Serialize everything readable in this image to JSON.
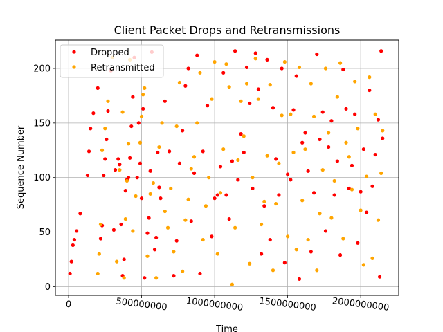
{
  "chart_data": {
    "type": "scatter",
    "title": "Client Packet Drops and Retransmissions",
    "xlabel": "Time",
    "ylabel": "Sequence Number",
    "xlim": [
      -90000000,
      2260000000
    ],
    "ylim": [
      -8,
      226
    ],
    "x_ticks": [
      0,
      500000000,
      1000000000,
      1500000000,
      2000000000
    ],
    "x_tick_labels": [
      "0",
      "500000000",
      "1000000000",
      "1500000000",
      "2000000000"
    ],
    "y_ticks": [
      0,
      50,
      100,
      150,
      200
    ],
    "y_tick_labels": [
      "0",
      "50",
      "100",
      "150",
      "200"
    ],
    "grid": true,
    "legend_position": "upper-left",
    "series": [
      {
        "name": "Dropped",
        "color": "#ff0000",
        "points": [
          [
            10000000,
            12
          ],
          [
            20000000,
            23
          ],
          [
            30000000,
            38
          ],
          [
            40000000,
            43
          ],
          [
            55000000,
            51
          ],
          [
            80000000,
            67
          ],
          [
            130000000,
            102
          ],
          [
            140000000,
            124
          ],
          [
            150000000,
            145
          ],
          [
            170000000,
            159
          ],
          [
            200000000,
            182
          ],
          [
            220000000,
            44
          ],
          [
            230000000,
            56
          ],
          [
            240000000,
            102
          ],
          [
            250000000,
            117
          ],
          [
            260000000,
            135
          ],
          [
            270000000,
            161
          ],
          [
            290000000,
            198
          ],
          [
            310000000,
            52
          ],
          [
            320000000,
            107
          ],
          [
            340000000,
            117
          ],
          [
            350000000,
            112
          ],
          [
            360000000,
            57
          ],
          [
            370000000,
            10
          ],
          [
            380000000,
            25
          ],
          [
            390000000,
            88
          ],
          [
            400000000,
            98
          ],
          [
            410000000,
            100
          ],
          [
            420000000,
            118
          ],
          [
            430000000,
            147
          ],
          [
            440000000,
            174
          ],
          [
            450000000,
            210
          ],
          [
            470000000,
            100
          ],
          [
            480000000,
            150
          ],
          [
            490000000,
            113
          ],
          [
            500000000,
            81
          ],
          [
            510000000,
            163
          ],
          [
            520000000,
            8
          ],
          [
            540000000,
            49
          ],
          [
            550000000,
            63
          ],
          [
            560000000,
            106
          ],
          [
            570000000,
            215
          ],
          [
            590000000,
            34
          ],
          [
            600000000,
            45
          ],
          [
            610000000,
            123
          ],
          [
            620000000,
            91
          ],
          [
            630000000,
            81
          ],
          [
            660000000,
            170
          ],
          [
            690000000,
            124
          ],
          [
            720000000,
            10
          ],
          [
            740000000,
            42
          ],
          [
            760000000,
            113
          ],
          [
            780000000,
            143
          ],
          [
            800000000,
            184
          ],
          [
            820000000,
            200
          ],
          [
            840000000,
            60
          ],
          [
            860000000,
            104
          ],
          [
            880000000,
            212
          ],
          [
            900000000,
            12
          ],
          [
            920000000,
            124
          ],
          [
            950000000,
            166
          ],
          [
            980000000,
            46
          ],
          [
            1000000000,
            81
          ],
          [
            1020000000,
            84
          ],
          [
            1040000000,
            110
          ],
          [
            1060000000,
            196
          ],
          [
            1080000000,
            84
          ],
          [
            1100000000,
            62
          ],
          [
            1120000000,
            115
          ],
          [
            1140000000,
            216
          ],
          [
            1160000000,
            98
          ],
          [
            1180000000,
            140
          ],
          [
            1200000000,
            123
          ],
          [
            1220000000,
            201
          ],
          [
            1240000000,
            168
          ],
          [
            1260000000,
            90
          ],
          [
            1280000000,
            214
          ],
          [
            1300000000,
            181
          ],
          [
            1320000000,
            30
          ],
          [
            1340000000,
            74
          ],
          [
            1360000000,
            208
          ],
          [
            1380000000,
            43
          ],
          [
            1400000000,
            164
          ],
          [
            1420000000,
            117
          ],
          [
            1440000000,
            84
          ],
          [
            1460000000,
            200
          ],
          [
            1480000000,
            22
          ],
          [
            1500000000,
            103
          ],
          [
            1520000000,
            98
          ],
          [
            1540000000,
            162
          ],
          [
            1560000000,
            193
          ],
          [
            1580000000,
            7
          ],
          [
            1600000000,
            132
          ],
          [
            1620000000,
            141
          ],
          [
            1640000000,
            106
          ],
          [
            1660000000,
            32
          ],
          [
            1680000000,
            86
          ],
          [
            1700000000,
            213
          ],
          [
            1720000000,
            135
          ],
          [
            1740000000,
            160
          ],
          [
            1760000000,
            51
          ],
          [
            1780000000,
            128
          ],
          [
            1800000000,
            152
          ],
          [
            1820000000,
            84
          ],
          [
            1840000000,
            115
          ],
          [
            1860000000,
            29
          ],
          [
            1880000000,
            199
          ],
          [
            1900000000,
            163
          ],
          [
            1920000000,
            90
          ],
          [
            1940000000,
            111
          ],
          [
            1960000000,
            158
          ],
          [
            1980000000,
            40
          ],
          [
            2000000000,
            87
          ],
          [
            2020000000,
            126
          ],
          [
            2040000000,
            68
          ],
          [
            2060000000,
            180
          ],
          [
            2080000000,
            92
          ],
          [
            2100000000,
            121
          ],
          [
            2120000000,
            153
          ],
          [
            2130000000,
            9
          ],
          [
            2140000000,
            216
          ],
          [
            2150000000,
            136
          ]
        ]
      },
      {
        "name": "Retransmitted",
        "color": "#ffa500",
        "points": [
          [
            200000000,
            12
          ],
          [
            210000000,
            30
          ],
          [
            220000000,
            57
          ],
          [
            230000000,
            125
          ],
          [
            250000000,
            145
          ],
          [
            270000000,
            170
          ],
          [
            300000000,
            210
          ],
          [
            330000000,
            23
          ],
          [
            350000000,
            107
          ],
          [
            370000000,
            160
          ],
          [
            380000000,
            8
          ],
          [
            390000000,
            62
          ],
          [
            400000000,
            97
          ],
          [
            410000000,
            131
          ],
          [
            420000000,
            208
          ],
          [
            440000000,
            51
          ],
          [
            460000000,
            83
          ],
          [
            490000000,
            132
          ],
          [
            500000000,
            156
          ],
          [
            510000000,
            176
          ],
          [
            520000000,
            182
          ],
          [
            540000000,
            28
          ],
          [
            560000000,
            85
          ],
          [
            580000000,
            95
          ],
          [
            600000000,
            8
          ],
          [
            620000000,
            128
          ],
          [
            640000000,
            150
          ],
          [
            660000000,
            69
          ],
          [
            680000000,
            54
          ],
          [
            700000000,
            90
          ],
          [
            720000000,
            32
          ],
          [
            740000000,
            147
          ],
          [
            760000000,
            187
          ],
          [
            780000000,
            14
          ],
          [
            800000000,
            61
          ],
          [
            820000000,
            80
          ],
          [
            840000000,
            108
          ],
          [
            860000000,
            119
          ],
          [
            880000000,
            150
          ],
          [
            900000000,
            196
          ],
          [
            920000000,
            43
          ],
          [
            940000000,
            74
          ],
          [
            960000000,
            100
          ],
          [
            980000000,
            172
          ],
          [
            1000000000,
            206
          ],
          [
            1020000000,
            30
          ],
          [
            1040000000,
            86
          ],
          [
            1060000000,
            126
          ],
          [
            1080000000,
            204
          ],
          [
            1100000000,
            183
          ],
          [
            1120000000,
            2
          ],
          [
            1140000000,
            54
          ],
          [
            1160000000,
            116
          ],
          [
            1180000000,
            170
          ],
          [
            1200000000,
            138
          ],
          [
            1220000000,
            186
          ],
          [
            1240000000,
            21
          ],
          [
            1260000000,
            100
          ],
          [
            1280000000,
            209
          ],
          [
            1300000000,
            172
          ],
          [
            1320000000,
            57
          ],
          [
            1340000000,
            78
          ],
          [
            1360000000,
            120
          ],
          [
            1380000000,
            185
          ],
          [
            1400000000,
            15
          ],
          [
            1420000000,
            76
          ],
          [
            1440000000,
            113
          ],
          [
            1460000000,
            157
          ],
          [
            1480000000,
            206
          ],
          [
            1500000000,
            46
          ],
          [
            1520000000,
            158
          ],
          [
            1540000000,
            123
          ],
          [
            1560000000,
            34
          ],
          [
            1580000000,
            201
          ],
          [
            1600000000,
            79
          ],
          [
            1620000000,
            126
          ],
          [
            1640000000,
            43
          ],
          [
            1660000000,
            186
          ],
          [
            1680000000,
            156
          ],
          [
            1700000000,
            15
          ],
          [
            1720000000,
            67
          ],
          [
            1740000000,
            107
          ],
          [
            1760000000,
            200
          ],
          [
            1780000000,
            141
          ],
          [
            1800000000,
            63
          ],
          [
            1820000000,
            97
          ],
          [
            1840000000,
            174
          ],
          [
            1860000000,
            205
          ],
          [
            1880000000,
            44
          ],
          [
            1900000000,
            132
          ],
          [
            1920000000,
            119
          ],
          [
            1940000000,
            89
          ],
          [
            1960000000,
            188
          ],
          [
            1980000000,
            145
          ],
          [
            2000000000,
            70
          ],
          [
            2020000000,
            20
          ],
          [
            2040000000,
            101
          ],
          [
            2060000000,
            192
          ],
          [
            2080000000,
            26
          ],
          [
            2100000000,
            158
          ],
          [
            2120000000,
            61
          ],
          [
            2140000000,
            104
          ],
          [
            2150000000,
            143
          ]
        ]
      }
    ]
  }
}
